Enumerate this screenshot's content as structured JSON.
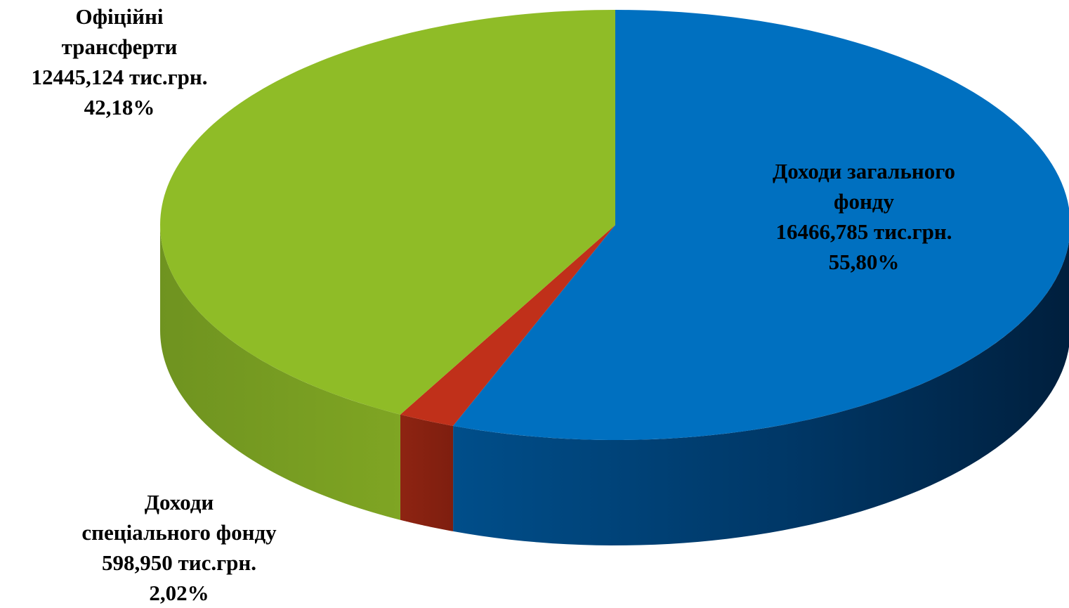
{
  "chart_data": {
    "type": "pie",
    "style": "3d",
    "slices": [
      {
        "label": "Доходи загального фонду",
        "value": 16466.785,
        "percent": 55.8,
        "label_lines": [
          "Доходи загального",
          "фонду",
          "16466,785 тис.грн.",
          "55,80%"
        ],
        "color": "#0070C0"
      },
      {
        "label": "Доходи спеціального фонду",
        "value": 598.95,
        "percent": 2.02,
        "label_lines": [
          "Доходи",
          "спеціального фонду",
          "598,950 тис.грн.",
          "2,02%"
        ],
        "color": "#C0301A"
      },
      {
        "label": "Офіційні трансферти",
        "value": 12445.124,
        "percent": 42.18,
        "label_lines": [
          "Офіційні",
          "трансферти",
          "12445,124 тис.грн.",
          "42,18%"
        ],
        "color": "#8FBC27"
      }
    ],
    "legend": "none",
    "data_labels": "outside"
  }
}
